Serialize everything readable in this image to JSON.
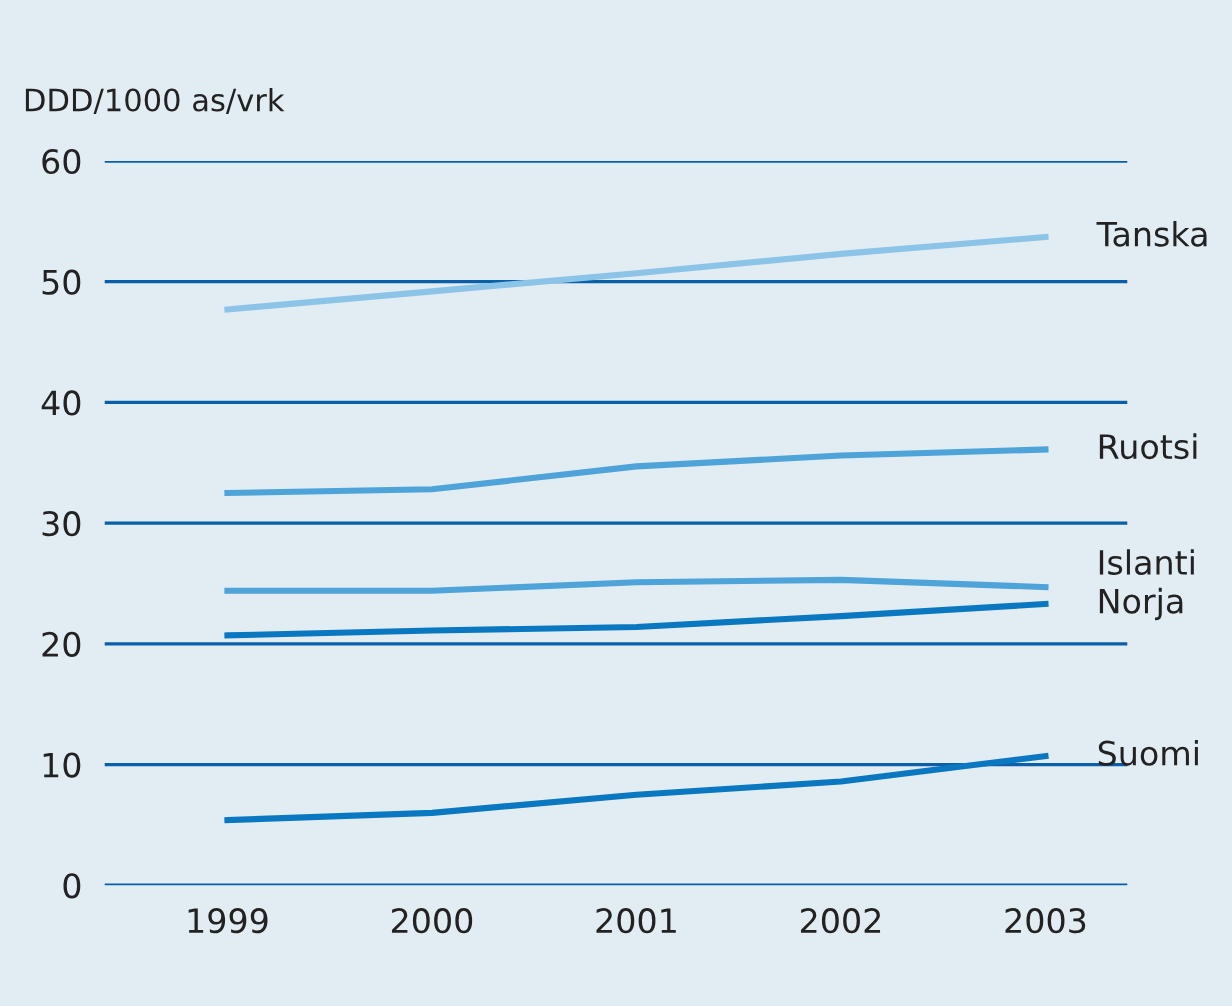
{
  "chart_data": {
    "type": "line",
    "ylabel": "DDD/1000 as/vrk",
    "categories": [
      "1999",
      "2000",
      "2001",
      "2002",
      "2003"
    ],
    "series": [
      {
        "name": "Tanska",
        "color": "#8cc4e8",
        "values": [
          47.7,
          49.2,
          50.7,
          52.3,
          53.7
        ]
      },
      {
        "name": "Ruotsi",
        "color": "#4ea3d8",
        "values": [
          32.5,
          32.8,
          34.7,
          35.6,
          36.1
        ]
      },
      {
        "name": "Islanti",
        "color": "#4ea3d8",
        "values": [
          24.4,
          24.4,
          25.1,
          25.3,
          24.7
        ]
      },
      {
        "name": "Norja",
        "color": "#0a78c0",
        "values": [
          20.7,
          21.1,
          21.4,
          22.3,
          23.3
        ]
      },
      {
        "name": "Suomi",
        "color": "#0a78c0",
        "values": [
          5.4,
          6.0,
          7.5,
          8.6,
          10.7
        ]
      }
    ],
    "ylim": [
      0,
      60
    ],
    "yticks": [
      0,
      10,
      20,
      30,
      40,
      50,
      60
    ],
    "grid": "y",
    "legend": false,
    "marker": "none",
    "line_style": "solid"
  }
}
